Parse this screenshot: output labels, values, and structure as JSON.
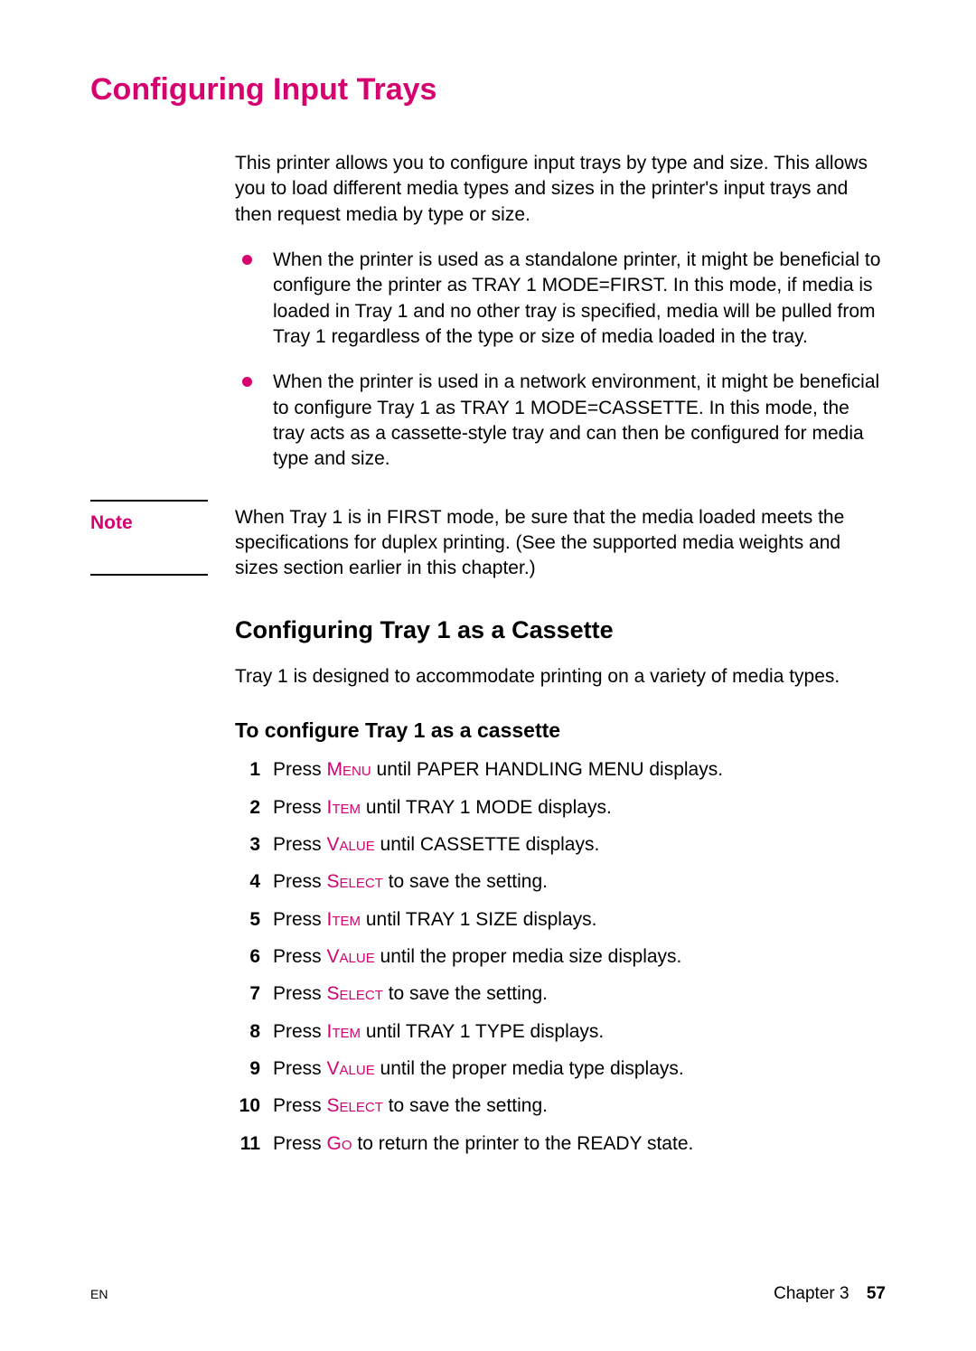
{
  "colors": {
    "accent": "#d6006e",
    "text": "#000000",
    "background": "#ffffff"
  },
  "title": "Configuring Input Trays",
  "intro": "This printer allows you to configure input trays by type and size. This allows you to load different media types and sizes in the printer's input trays and then request media by type or size.",
  "bullets": [
    "When the printer is used as a standalone printer, it might be beneficial to configure the printer as TRAY 1 MODE=FIRST. In this mode, if media is loaded in Tray 1 and no other tray is specified, media will be pulled from Tray 1 regardless of the type or size of media loaded in the tray.",
    "When the printer is used in a network environment, it might be beneficial to configure Tray 1 as TRAY 1 MODE=CASSETTE. In this mode, the tray acts as a cassette-style tray and can then be configured for media type and size."
  ],
  "note": {
    "label": "Note",
    "text": "When Tray 1 is in FIRST mode, be sure that the media loaded meets the specifications for duplex printing. (See the supported media weights and sizes section earlier in this chapter.)"
  },
  "subsection": {
    "title": "Configuring Tray 1 as a Cassette",
    "intro": "Tray 1 is designed to accommodate printing on a variety of media types.",
    "procTitle": "To configure Tray 1 as a cassette",
    "steps": [
      {
        "n": "1",
        "pre": "Press ",
        "hl": "Menu",
        "post": " until PAPER HANDLING MENU displays."
      },
      {
        "n": "2",
        "pre": "Press ",
        "hl": "Item",
        "post": " until TRAY 1 MODE displays."
      },
      {
        "n": "3",
        "pre": "Press ",
        "hl": "Value",
        "post": " until CASSETTE displays."
      },
      {
        "n": "4",
        "pre": "Press ",
        "hl": "Select",
        "post": " to save the setting."
      },
      {
        "n": "5",
        "pre": "Press ",
        "hl": "Item",
        "post": " until TRAY 1 SIZE displays."
      },
      {
        "n": "6",
        "pre": "Press ",
        "hl": "Value",
        "post": " until the proper media size displays."
      },
      {
        "n": "7",
        "pre": "Press ",
        "hl": "Select",
        "post": " to save the setting."
      },
      {
        "n": "8",
        "pre": "Press ",
        "hl": "Item",
        "post": " until TRAY 1 TYPE displays."
      },
      {
        "n": "9",
        "pre": "Press ",
        "hl": "Value",
        "post": " until the proper media type displays."
      },
      {
        "n": "10",
        "pre": "Press ",
        "hl": "Select",
        "post": " to save the setting."
      },
      {
        "n": "11",
        "pre": "Press ",
        "hl": "Go",
        "post": " to return the printer to the READY state."
      }
    ]
  },
  "footer": {
    "left": "EN",
    "chapter": "Chapter 3",
    "page": "57"
  }
}
